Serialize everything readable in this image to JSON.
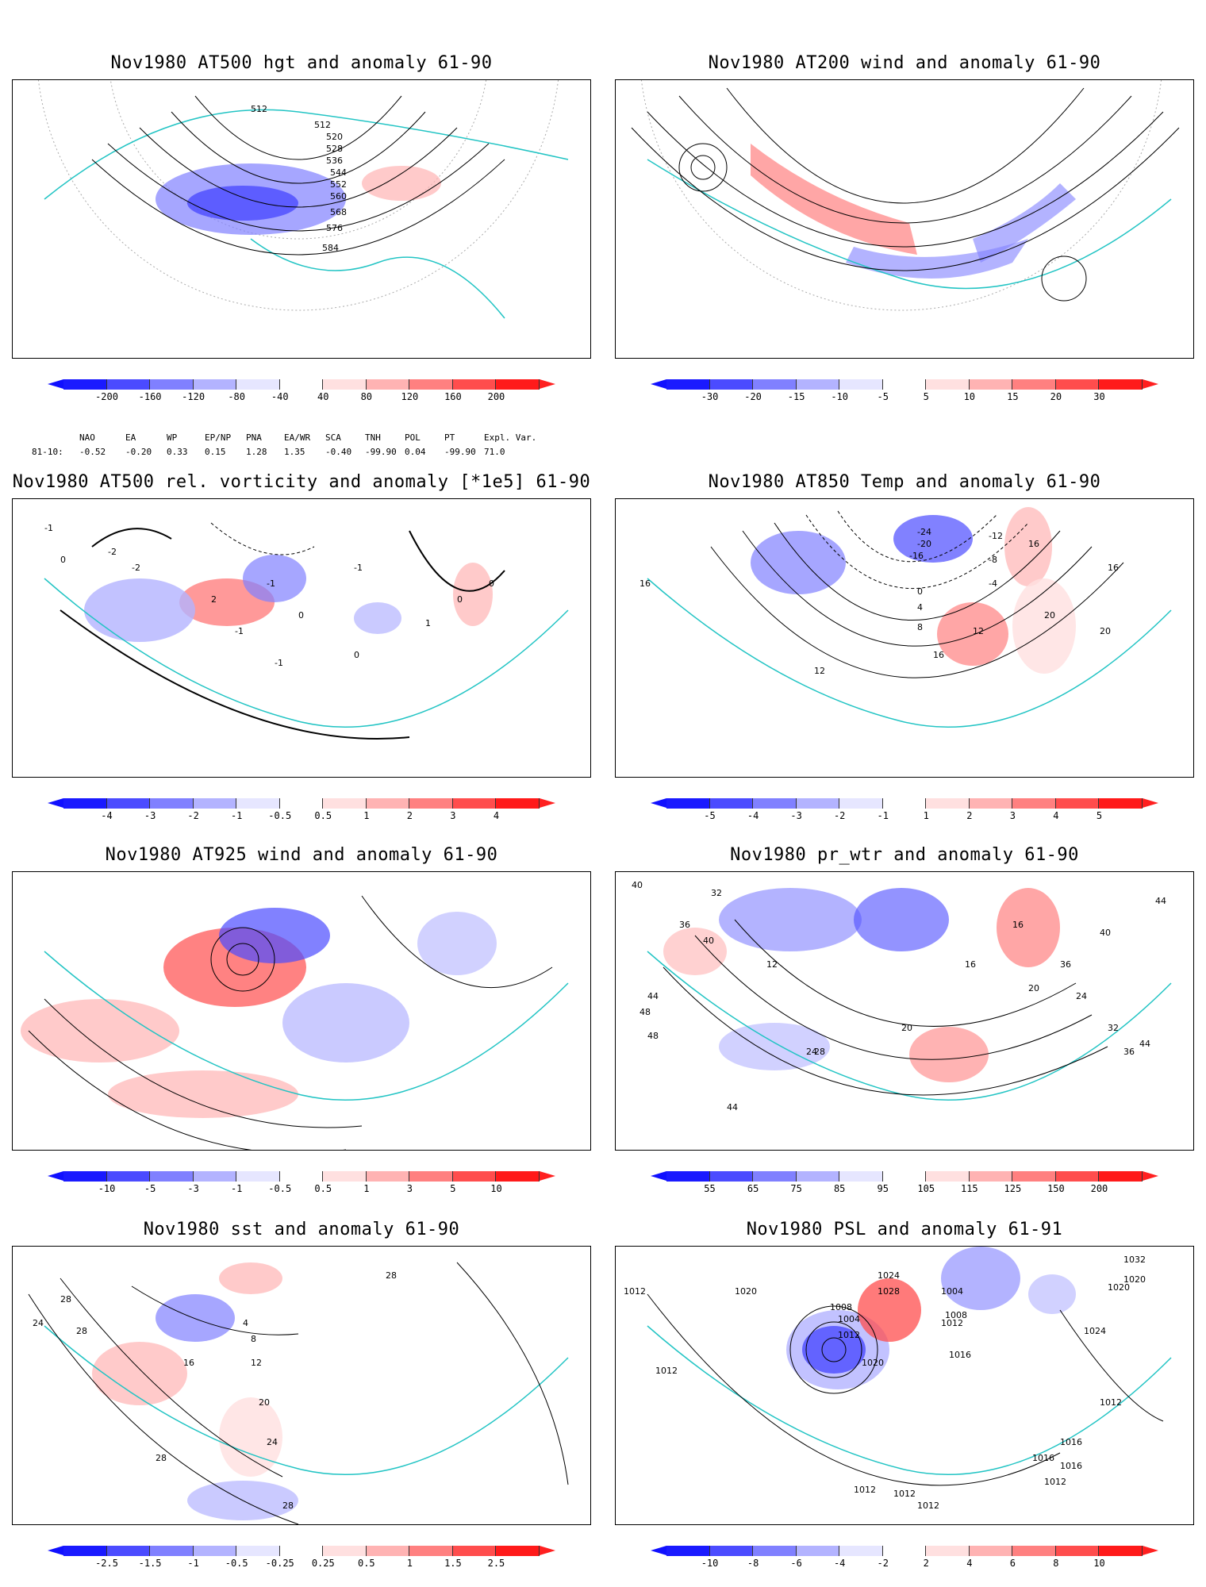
{
  "panels": [
    {
      "title": "Nov1980 AT500 hgt and anomaly 61-90",
      "contour_labels": [
        "512",
        "512",
        "520",
        "528",
        "536",
        "544",
        "552",
        "560",
        "568",
        "576",
        "584"
      ],
      "colorbar": {
        "labels": [
          "-200",
          "-160",
          "-120",
          "-80",
          "-40",
          "40",
          "80",
          "120",
          "160",
          "200"
        ],
        "colors": [
          "#1a1aff",
          "#4b4bff",
          "#8080ff",
          "#b3b3ff",
          "#e6e6ff",
          "#ffffff",
          "#ffe0e0",
          "#ffb3b3",
          "#ff8080",
          "#ff4d4d",
          "#ff1a1a"
        ]
      }
    },
    {
      "title": "Nov1980 AT200 wind and anomaly 61-90",
      "contour_labels": [],
      "colorbar": {
        "labels": [
          "-30",
          "-20",
          "-15",
          "-10",
          "-5",
          "5",
          "10",
          "15",
          "20",
          "30"
        ],
        "colors": [
          "#1a1aff",
          "#4b4bff",
          "#8080ff",
          "#b3b3ff",
          "#e6e6ff",
          "#ffffff",
          "#ffe0e0",
          "#ffb3b3",
          "#ff8080",
          "#ff4d4d",
          "#ff1a1a"
        ]
      }
    },
    {
      "title": "Nov1980 AT500 rel. vorticity and anomaly [*1e5] 61-90",
      "contour_labels": [
        "-1",
        "0",
        "-2",
        "2",
        "-1",
        "0",
        "-1",
        "-1",
        "-1",
        "0",
        "0",
        "-2",
        "1",
        "0"
      ],
      "colorbar": {
        "labels": [
          "-4",
          "-3",
          "-2",
          "-1",
          "-0.5",
          "0.5",
          "1",
          "2",
          "3",
          "4"
        ],
        "colors": [
          "#1a1aff",
          "#4b4bff",
          "#8080ff",
          "#b3b3ff",
          "#e6e6ff",
          "#ffffff",
          "#ffe0e0",
          "#ffb3b3",
          "#ff8080",
          "#ff4d4d",
          "#ff1a1a"
        ]
      }
    },
    {
      "title": "Nov1980 AT850 Temp and anomaly 61-90",
      "contour_labels": [
        "-24",
        "-20",
        "-16",
        "-12",
        "-8",
        "-4",
        "0",
        "4",
        "8",
        "12",
        "16",
        "16",
        "20",
        "20",
        "16",
        "12",
        "16"
      ],
      "colorbar": {
        "labels": [
          "-5",
          "-4",
          "-3",
          "-2",
          "-1",
          "1",
          "2",
          "3",
          "4",
          "5"
        ],
        "colors": [
          "#1a1aff",
          "#4b4bff",
          "#8080ff",
          "#b3b3ff",
          "#e6e6ff",
          "#ffffff",
          "#ffe0e0",
          "#ffb3b3",
          "#ff8080",
          "#ff4d4d",
          "#ff1a1a"
        ]
      }
    },
    {
      "title": "Nov1980 AT925 wind and anomaly 61-90",
      "contour_labels": [],
      "colorbar": {
        "labels": [
          "-10",
          "-5",
          "-3",
          "-1",
          "-0.5",
          "0.5",
          "1",
          "3",
          "5",
          "10"
        ],
        "colors": [
          "#1a1aff",
          "#4b4bff",
          "#8080ff",
          "#b3b3ff",
          "#e6e6ff",
          "#ffffff",
          "#ffe0e0",
          "#ffb3b3",
          "#ff8080",
          "#ff4d4d",
          "#ff1a1a"
        ]
      }
    },
    {
      "title": "Nov1980 pr_wtr and anomaly 61-90",
      "contour_labels": [
        "40",
        "32",
        "36",
        "40",
        "44",
        "48",
        "12",
        "16",
        "24",
        "28",
        "20",
        "44",
        "40",
        "36",
        "44",
        "48",
        "16",
        "20",
        "24",
        "32",
        "36",
        "44"
      ],
      "colorbar": {
        "labels": [
          "55",
          "65",
          "75",
          "85",
          "95",
          "105",
          "115",
          "125",
          "150",
          "200"
        ],
        "colors": [
          "#1a1aff",
          "#4b4bff",
          "#8080ff",
          "#b3b3ff",
          "#e6e6ff",
          "#ffffff",
          "#ffe0e0",
          "#ffb3b3",
          "#ff8080",
          "#ff4d4d",
          "#ff1a1a"
        ]
      }
    },
    {
      "title": "Nov1980 sst and anomaly 61-90",
      "contour_labels": [
        "28",
        "24",
        "28",
        "16",
        "12",
        "8",
        "4",
        "20",
        "24",
        "28",
        "28",
        "28"
      ],
      "colorbar": {
        "labels": [
          "-2.5",
          "-1.5",
          "-1",
          "-0.5",
          "-0.25",
          "0.25",
          "0.5",
          "1",
          "1.5",
          "2.5"
        ],
        "colors": [
          "#1a1aff",
          "#4b4bff",
          "#8080ff",
          "#b3b3ff",
          "#e6e6ff",
          "#ffffff",
          "#ffe0e0",
          "#ffb3b3",
          "#ff8080",
          "#ff4d4d",
          "#ff1a1a"
        ]
      }
    },
    {
      "title": "Nov1980 PSL and anomaly 61-91",
      "contour_labels": [
        "1012",
        "1020",
        "1012",
        "1008",
        "1004",
        "1012",
        "1016",
        "1024",
        "1028",
        "1020",
        "1004",
        "1008",
        "1012",
        "1016",
        "1024",
        "1020",
        "1032",
        "1020",
        "1012",
        "1016",
        "1016",
        "1012",
        "1012",
        "1012",
        "1012"
      ],
      "colorbar": {
        "labels": [
          "-10",
          "-8",
          "-6",
          "-4",
          "-2",
          "2",
          "4",
          "6",
          "8",
          "10"
        ],
        "colors": [
          "#1a1aff",
          "#4b4bff",
          "#8080ff",
          "#b3b3ff",
          "#e6e6ff",
          "#ffffff",
          "#ffe0e0",
          "#ffb3b3",
          "#ff8080",
          "#ff4d4d",
          "#ff1a1a"
        ]
      }
    }
  ],
  "teleconnections": {
    "headers": [
      "NAO",
      "EA",
      "WP",
      "EP/NP",
      "PNA",
      "EA/WR",
      "SCA",
      "TNH",
      "POL",
      "PT",
      "Expl. Var."
    ],
    "row_label": "81-10:",
    "values": [
      "-0.52",
      "-0.20",
      "0.33",
      "0.15",
      "1.28",
      "1.35",
      "-0.40",
      "-99.90",
      "0.04",
      "-99.90",
      "71.0"
    ]
  }
}
